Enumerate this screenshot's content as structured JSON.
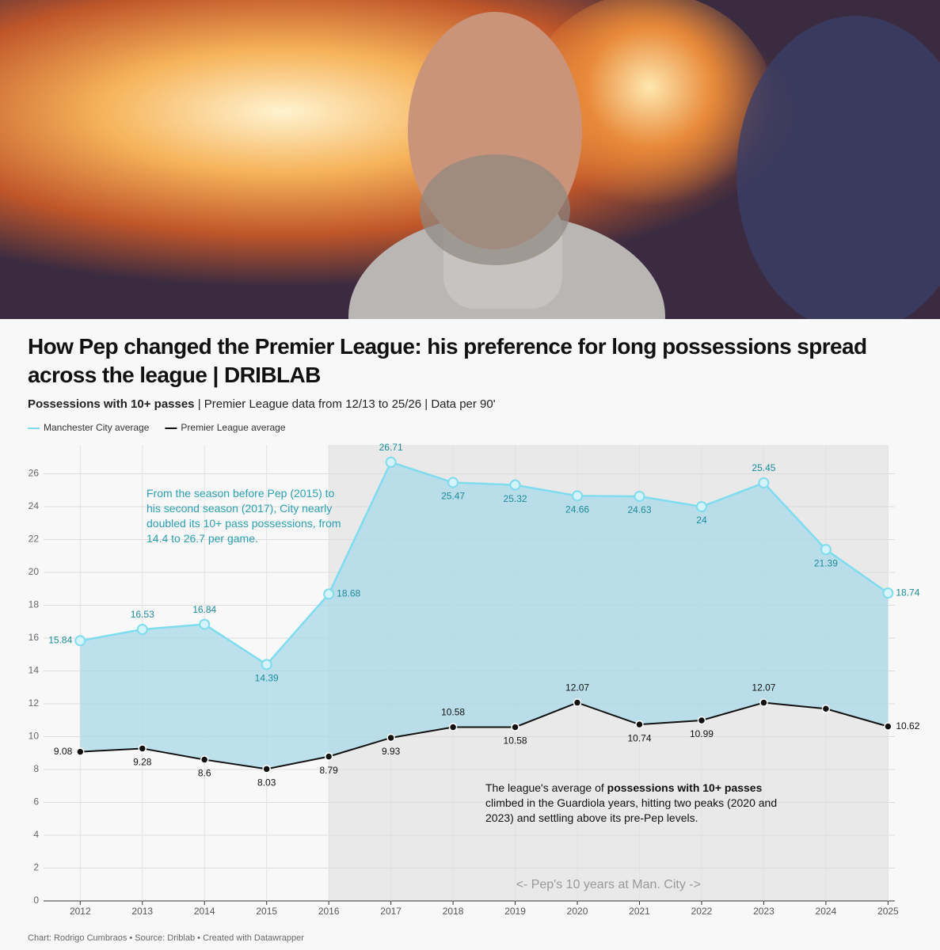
{
  "chart_data": {
    "type": "line",
    "title": "How Pep changed the Premier League: his preference for long possessions spread across the league | DRIBLAB",
    "subtitle_bold": "Possessions with 10+ passes",
    "subtitle": " | Premier League data from 12/13 to 25/26 | Data per 90'",
    "x": [
      2012,
      2013,
      2014,
      2015,
      2016,
      2017,
      2018,
      2019,
      2020,
      2021,
      2022,
      2023,
      2024,
      2025
    ],
    "series": [
      {
        "name": "Manchester City average",
        "color": "#7fdcef",
        "label_color": "#1a8a99",
        "values": [
          15.84,
          16.53,
          16.84,
          14.39,
          18.68,
          26.71,
          25.47,
          25.32,
          24.66,
          24.63,
          24,
          25.45,
          21.39,
          18.74
        ]
      },
      {
        "name": "Premier League average",
        "color": "#111111",
        "label_color": "#111111",
        "values": [
          9.08,
          9.28,
          8.6,
          8.03,
          8.79,
          9.93,
          10.58,
          10.58,
          12.07,
          10.74,
          10.99,
          12.07,
          11.7,
          10.62
        ],
        "value_labels": [
          "9.08",
          "9.28",
          "8.6",
          "8.03",
          "8.79",
          "9.93",
          "10.58",
          "10.58",
          "12.07",
          "10.74",
          "10.99",
          "12.07",
          null,
          "10.62"
        ]
      }
    ],
    "area_color": "#a9d9e8",
    "highlight_range": [
      2016,
      2025
    ],
    "highlight_label": "<- Pep's 10 years at Man. City ->",
    "xlim": [
      2011.41,
      2025.11
    ],
    "xticks": [
      2012,
      2013,
      2014,
      2015,
      2016,
      2017,
      2018,
      2019,
      2020,
      2021,
      2022,
      2023,
      2024,
      2025
    ],
    "ylim": [
      0,
      27.76
    ],
    "yticks": [
      0,
      2,
      4,
      6,
      8,
      10,
      12,
      14,
      16,
      18,
      20,
      22,
      24,
      26
    ],
    "grid": true,
    "legend": "top-left",
    "annotations": [
      "From the season before Pep (2015) to his second season (2017), City nearly doubled its 10+ pass possessions, from 14.4 to 26.7 per game."
    ],
    "annotation_league": [
      "The league's average of ",
      "possessions with 10+ passes",
      " climbed in the Guardiola years, hitting two peaks (2020 and 2023) and settling above its pre-Pep levels."
    ],
    "footer": "Chart: Rodrigo Cumbraos • Source: Driblab • Created with Datawrapper"
  }
}
